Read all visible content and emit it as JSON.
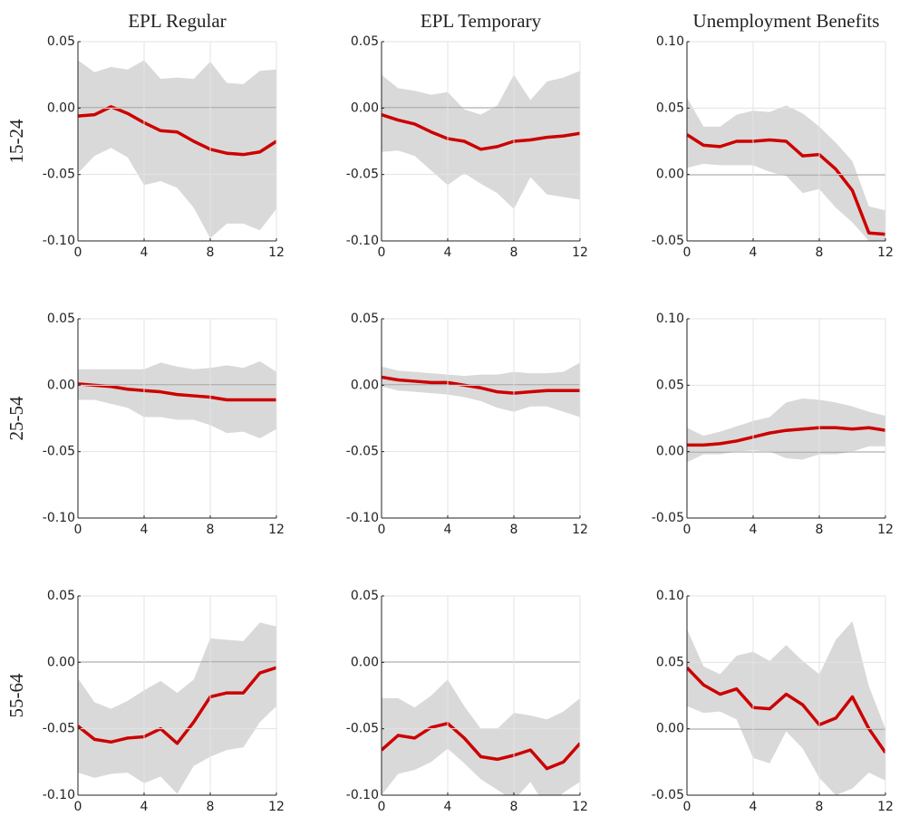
{
  "column_titles": [
    "EPL Regular",
    "EPL Temporary",
    "Unemployment Benefits"
  ],
  "row_labels": [
    "15-24",
    "25-54",
    "55-64"
  ],
  "chart_data": [
    {
      "type": "line",
      "x": [
        0,
        1,
        2,
        3,
        4,
        5,
        6,
        7,
        8,
        9,
        10,
        11,
        12
      ],
      "values": [
        -0.006,
        -0.005,
        0.001,
        -0.004,
        -0.011,
        -0.017,
        -0.018,
        -0.025,
        -0.031,
        -0.034,
        -0.035,
        -0.033,
        -0.025
      ],
      "upper": [
        0.036,
        0.027,
        0.031,
        0.029,
        0.036,
        0.022,
        0.023,
        0.022,
        0.035,
        0.019,
        0.018,
        0.028,
        0.029
      ],
      "lower": [
        -0.049,
        -0.036,
        -0.03,
        -0.037,
        -0.058,
        -0.055,
        -0.06,
        -0.075,
        -0.098,
        -0.087,
        -0.087,
        -0.092,
        -0.076
      ],
      "color": "#cc0000",
      "band_color": "#d9d9d9",
      "xlim": [
        0,
        12
      ],
      "xticks": [
        0,
        4,
        8,
        12
      ],
      "ylim": [
        -0.1,
        0.05
      ],
      "yticks": [
        {
          "value": -0.1,
          "label": "-0.10"
        },
        -0.05,
        {
          "value": 0,
          "label": "0.00"
        },
        0.05
      ],
      "zero_line": 0,
      "grid": true
    },
    {
      "type": "line",
      "x": [
        0,
        1,
        2,
        3,
        4,
        5,
        6,
        7,
        8,
        9,
        10,
        11,
        12
      ],
      "values": [
        -0.005,
        -0.009,
        -0.012,
        -0.018,
        -0.023,
        -0.025,
        -0.031,
        -0.029,
        -0.025,
        -0.024,
        -0.022,
        -0.021,
        -0.019
      ],
      "upper": [
        0.025,
        0.015,
        0.013,
        0.01,
        0.012,
        -0.001,
        -0.005,
        0.002,
        0.025,
        0.006,
        0.02,
        0.023,
        0.028
      ],
      "lower": [
        -0.033,
        -0.032,
        -0.036,
        -0.047,
        -0.058,
        -0.049,
        -0.057,
        -0.064,
        -0.076,
        -0.052,
        -0.065,
        -0.067,
        -0.069
      ],
      "color": "#cc0000",
      "band_color": "#d9d9d9",
      "xlim": [
        0,
        12
      ],
      "xticks": [
        0,
        4,
        8,
        12
      ],
      "ylim": [
        -0.1,
        0.05
      ],
      "yticks": [
        {
          "value": -0.1,
          "label": "-0.10"
        },
        -0.05,
        {
          "value": 0,
          "label": "0.00"
        },
        0.05
      ],
      "zero_line": 0,
      "grid": true
    },
    {
      "type": "line",
      "x": [
        0,
        1,
        2,
        3,
        4,
        5,
        6,
        7,
        8,
        9,
        10,
        11,
        12
      ],
      "values": [
        0.03,
        0.022,
        0.021,
        0.025,
        0.025,
        0.026,
        0.025,
        0.014,
        0.015,
        0.004,
        -0.012,
        -0.044,
        -0.045
      ],
      "upper": [
        0.058,
        0.036,
        0.036,
        0.045,
        0.048,
        0.047,
        0.052,
        0.046,
        0.036,
        0.024,
        0.01,
        -0.024,
        -0.027
      ],
      "lower": [
        0.005,
        0.008,
        0.007,
        0.007,
        0.007,
        0.002,
        -0.001,
        -0.014,
        -0.011,
        -0.025,
        -0.036,
        -0.05,
        -0.05
      ],
      "color": "#cc0000",
      "band_color": "#d9d9d9",
      "xlim": [
        0,
        12
      ],
      "xticks": [
        0,
        4,
        8,
        12
      ],
      "ylim": [
        -0.05,
        0.1
      ],
      "yticks": [
        -0.05,
        {
          "value": 0,
          "label": "0.00"
        },
        0.05,
        {
          "value": 0.1,
          "label": "0.10"
        }
      ],
      "zero_line": 0,
      "grid": true
    },
    {
      "type": "line",
      "x": [
        0,
        1,
        2,
        3,
        4,
        5,
        6,
        7,
        8,
        9,
        10,
        11,
        12
      ],
      "values": [
        0.001,
        0,
        -0.001,
        -0.003,
        -0.004,
        -0.005,
        -0.007,
        -0.008,
        -0.009,
        -0.011,
        -0.011,
        -0.011,
        -0.011
      ],
      "upper": [
        0.012,
        0.012,
        0.012,
        0.012,
        0.012,
        0.017,
        0.014,
        0.012,
        0.013,
        0.015,
        0.013,
        0.018,
        0.01
      ],
      "lower": [
        -0.011,
        -0.011,
        -0.014,
        -0.017,
        -0.024,
        -0.024,
        -0.026,
        -0.026,
        -0.03,
        -0.036,
        -0.035,
        -0.04,
        -0.033
      ],
      "color": "#cc0000",
      "band_color": "#d9d9d9",
      "xlim": [
        0,
        12
      ],
      "xticks": [
        0,
        4,
        8,
        12
      ],
      "ylim": [
        -0.1,
        0.05
      ],
      "yticks": [
        {
          "value": -0.1,
          "label": "-0.10"
        },
        -0.05,
        {
          "value": 0,
          "label": "0.00"
        },
        0.05
      ],
      "zero_line": 0,
      "grid": true
    },
    {
      "type": "line",
      "x": [
        0,
        1,
        2,
        3,
        4,
        5,
        6,
        7,
        8,
        9,
        10,
        11,
        12
      ],
      "values": [
        0.006,
        0.004,
        0.003,
        0.002,
        0.002,
        0,
        -0.002,
        -0.005,
        -0.006,
        -0.005,
        -0.004,
        -0.004,
        -0.004
      ],
      "upper": [
        0.014,
        0.011,
        0.01,
        0.009,
        0.008,
        0.007,
        0.008,
        0.008,
        0.01,
        0.009,
        0.009,
        0.01,
        0.017
      ],
      "lower": [
        -0.001,
        -0.004,
        -0.005,
        -0.006,
        -0.007,
        -0.009,
        -0.012,
        -0.017,
        -0.02,
        -0.016,
        -0.016,
        -0.02,
        -0.024
      ],
      "color": "#cc0000",
      "band_color": "#d9d9d9",
      "xlim": [
        0,
        12
      ],
      "xticks": [
        0,
        4,
        8,
        12
      ],
      "ylim": [
        -0.1,
        0.05
      ],
      "yticks": [
        {
          "value": -0.1,
          "label": "-0.10"
        },
        -0.05,
        {
          "value": 0,
          "label": "0.00"
        },
        0.05
      ],
      "zero_line": 0,
      "grid": true
    },
    {
      "type": "line",
      "x": [
        0,
        1,
        2,
        3,
        4,
        5,
        6,
        7,
        8,
        9,
        10,
        11,
        12
      ],
      "values": [
        0.005,
        0.005,
        0.006,
        0.008,
        0.011,
        0.014,
        0.016,
        0.017,
        0.018,
        0.018,
        0.017,
        0.018,
        0.016
      ],
      "upper": [
        0.018,
        0.012,
        0.015,
        0.019,
        0.023,
        0.026,
        0.037,
        0.04,
        0.039,
        0.037,
        0.034,
        0.03,
        0.027
      ],
      "lower": [
        -0.008,
        -0.002,
        -0.002,
        0,
        0.001,
        0,
        -0.005,
        -0.006,
        -0.002,
        -0.002,
        0,
        0.004,
        0.004
      ],
      "color": "#cc0000",
      "band_color": "#d9d9d9",
      "xlim": [
        0,
        12
      ],
      "xticks": [
        0,
        4,
        8,
        12
      ],
      "ylim": [
        -0.05,
        0.1
      ],
      "yticks": [
        -0.05,
        {
          "value": 0,
          "label": "0.00"
        },
        0.05,
        {
          "value": 0.1,
          "label": "0.10"
        }
      ],
      "zero_line": 0,
      "grid": true
    },
    {
      "type": "line",
      "x": [
        0,
        1,
        2,
        3,
        4,
        5,
        6,
        7,
        8,
        9,
        10,
        11,
        12
      ],
      "values": [
        -0.048,
        -0.058,
        -0.06,
        -0.057,
        -0.056,
        -0.05,
        -0.061,
        -0.045,
        -0.026,
        -0.023,
        -0.023,
        -0.008,
        -0.004
      ],
      "upper": [
        -0.012,
        -0.03,
        -0.035,
        -0.029,
        -0.021,
        -0.014,
        -0.023,
        -0.013,
        0.018,
        0.017,
        0.016,
        0.03,
        0.027
      ],
      "lower": [
        -0.083,
        -0.087,
        -0.084,
        -0.083,
        -0.091,
        -0.086,
        -0.099,
        -0.078,
        -0.071,
        -0.066,
        -0.064,
        -0.045,
        -0.033
      ],
      "color": "#cc0000",
      "band_color": "#d9d9d9",
      "xlim": [
        0,
        12
      ],
      "xticks": [
        0,
        4,
        8,
        12
      ],
      "ylim": [
        -0.1,
        0.05
      ],
      "yticks": [
        {
          "value": -0.1,
          "label": "-0.10"
        },
        -0.05,
        {
          "value": 0,
          "label": "0.00"
        },
        0.05
      ],
      "zero_line": 0,
      "grid": true
    },
    {
      "type": "line",
      "x": [
        0,
        1,
        2,
        3,
        4,
        5,
        6,
        7,
        8,
        9,
        10,
        11,
        12
      ],
      "values": [
        -0.066,
        -0.055,
        -0.057,
        -0.049,
        -0.046,
        -0.057,
        -0.071,
        -0.073,
        -0.07,
        -0.066,
        -0.08,
        -0.075,
        -0.061
      ],
      "upper": [
        -0.027,
        -0.027,
        -0.034,
        -0.025,
        -0.013,
        -0.033,
        -0.05,
        -0.05,
        -0.038,
        -0.04,
        -0.043,
        -0.037,
        -0.027
      ],
      "lower": [
        -0.1,
        -0.084,
        -0.081,
        -0.075,
        -0.065,
        -0.076,
        -0.088,
        -0.096,
        -0.104,
        -0.09,
        -0.11,
        -0.098,
        -0.09
      ],
      "color": "#cc0000",
      "band_color": "#d9d9d9",
      "xlim": [
        0,
        12
      ],
      "xticks": [
        0,
        4,
        8,
        12
      ],
      "ylim": [
        -0.1,
        0.05
      ],
      "yticks": [
        {
          "value": -0.1,
          "label": "-0.10"
        },
        -0.05,
        {
          "value": 0,
          "label": "0.00"
        },
        0.05
      ],
      "zero_line": 0,
      "grid": true
    },
    {
      "type": "line",
      "x": [
        0,
        1,
        2,
        3,
        4,
        5,
        6,
        7,
        8,
        9,
        10,
        11,
        12
      ],
      "values": [
        0.046,
        0.033,
        0.026,
        0.03,
        0.016,
        0.015,
        0.026,
        0.018,
        0.003,
        0.008,
        0.024,
        0,
        -0.018
      ],
      "upper": [
        0.075,
        0.047,
        0.041,
        0.055,
        0.058,
        0.051,
        0.063,
        0.051,
        0.041,
        0.067,
        0.081,
        0.032,
        0
      ],
      "lower": [
        0.017,
        0.012,
        0.013,
        0.007,
        -0.022,
        -0.026,
        -0.002,
        -0.015,
        -0.037,
        -0.05,
        -0.045,
        -0.033,
        -0.039
      ],
      "color": "#cc0000",
      "band_color": "#d9d9d9",
      "xlim": [
        0,
        12
      ],
      "xticks": [
        0,
        4,
        8,
        12
      ],
      "ylim": [
        -0.05,
        0.1
      ],
      "yticks": [
        -0.05,
        {
          "value": 0,
          "label": "0.00"
        },
        0.05,
        {
          "value": 0.1,
          "label": "0.10"
        }
      ],
      "zero_line": 0,
      "grid": true
    }
  ]
}
